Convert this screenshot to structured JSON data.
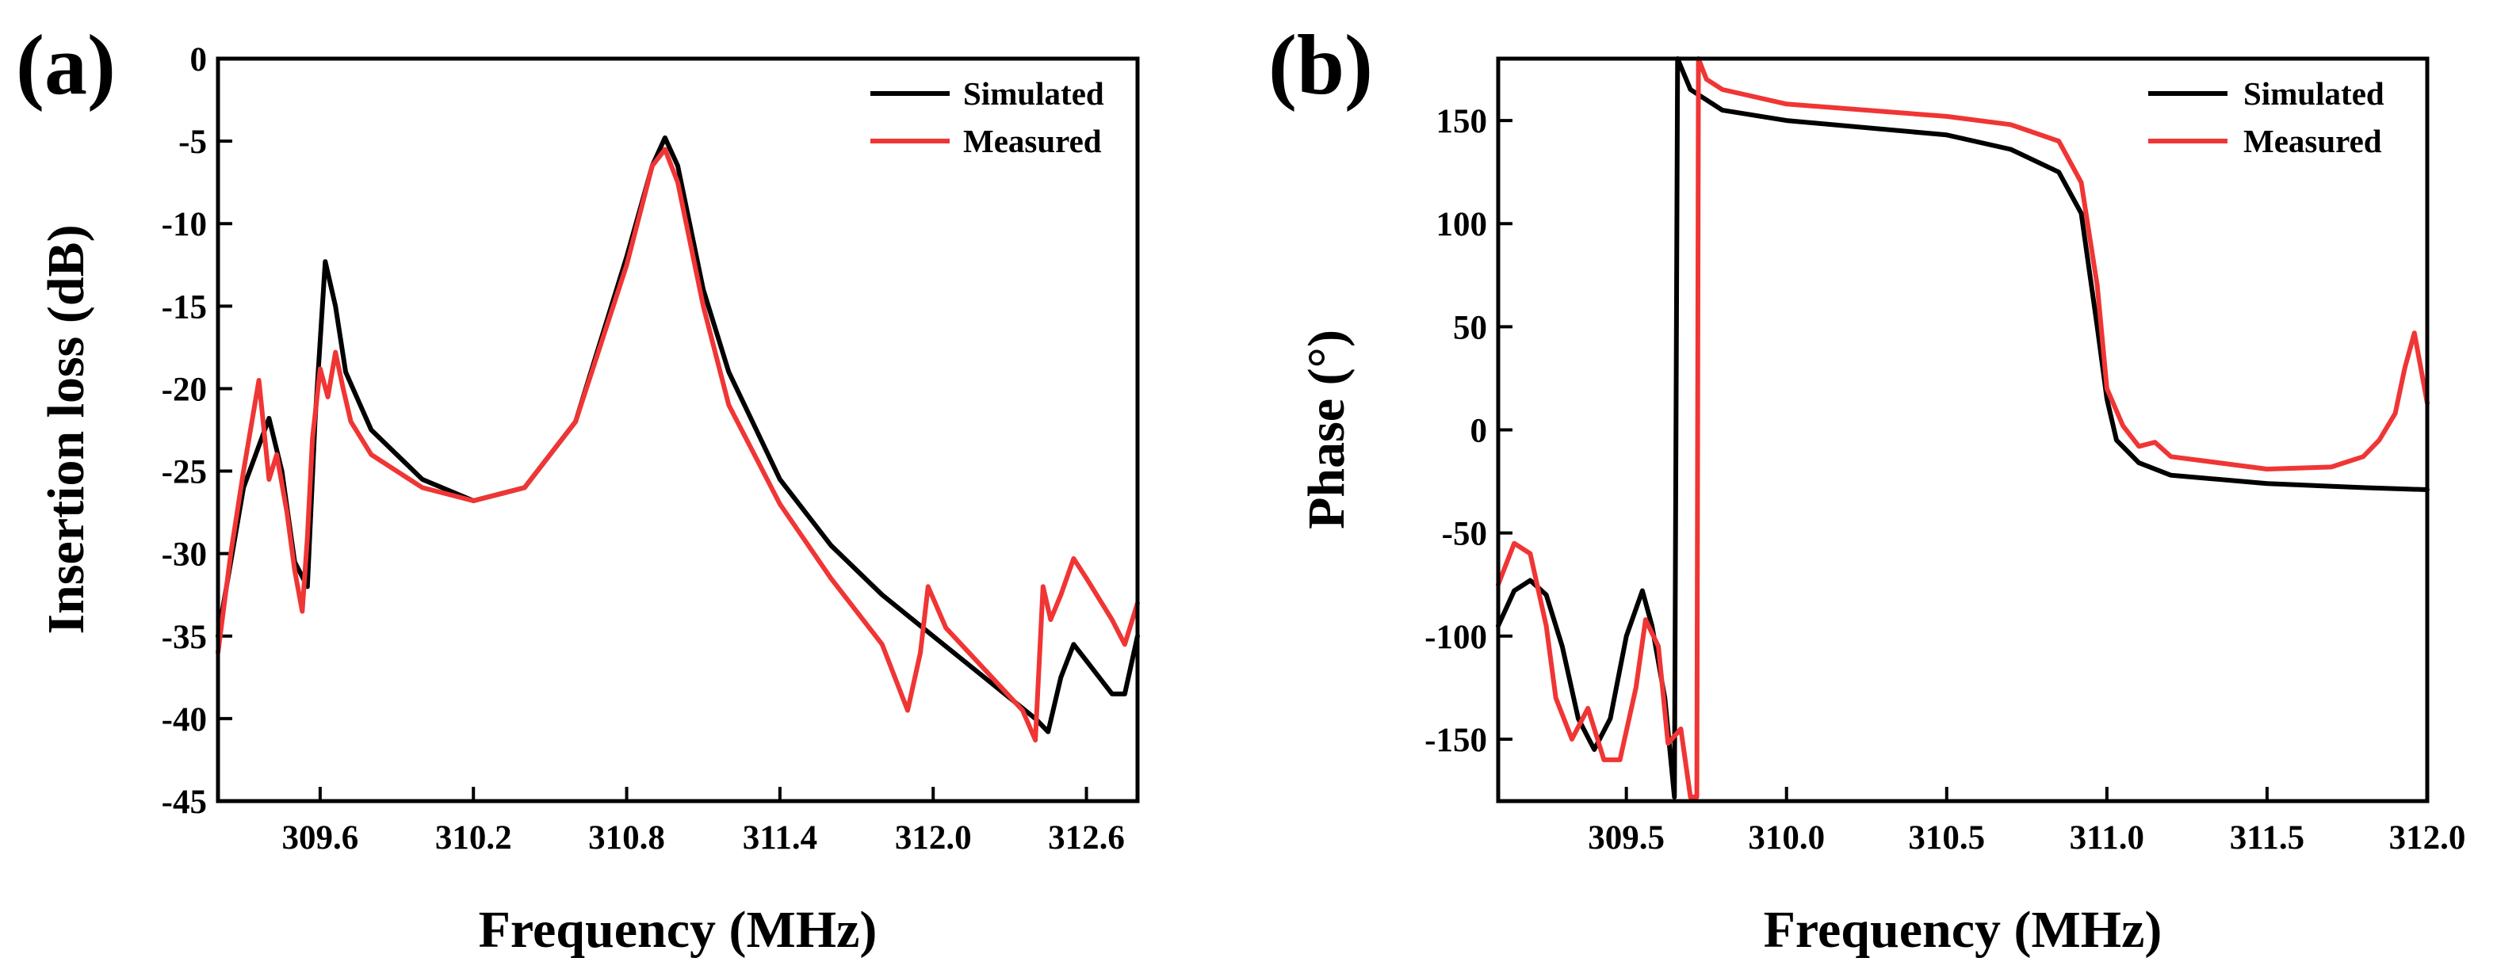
{
  "chart_data": [
    {
      "type": "line",
      "panel_label": "(a)",
      "xlabel": "Frequency (MHz)",
      "ylabel": "Insertion loss (dB)",
      "xlim": [
        309.2,
        312.8
      ],
      "ylim": [
        -45,
        0
      ],
      "xticks": [
        309.6,
        310.2,
        310.8,
        311.4,
        312.0,
        312.6
      ],
      "xtick_labels": [
        "309.6",
        "310.2",
        "310.8",
        "311.4",
        "312.0",
        "312.6"
      ],
      "yticks": [
        0,
        -5,
        -10,
        -15,
        -20,
        -25,
        -30,
        -35,
        -40,
        -45
      ],
      "ytick_labels": [
        "0",
        "-5",
        "-10",
        "-15",
        "-20",
        "-25",
        "-30",
        "-35",
        "-40",
        "-45"
      ],
      "legend_position": "top-right",
      "series": [
        {
          "name": "Simulated",
          "color": "#000000",
          "x": [
            309.2,
            309.3,
            309.4,
            309.45,
            309.5,
            309.55,
            309.58,
            309.62,
            309.66,
            309.7,
            309.8,
            310.0,
            310.2,
            310.4,
            310.6,
            310.8,
            310.9,
            310.95,
            311.0,
            311.1,
            311.2,
            311.4,
            311.6,
            311.8,
            312.0,
            312.2,
            312.4,
            312.45,
            312.5,
            312.55,
            312.6,
            312.7,
            312.75,
            312.8
          ],
          "y": [
            -35,
            -26,
            -21.8,
            -25,
            -30.5,
            -32,
            -22,
            -12.3,
            -15,
            -19,
            -22.5,
            -25.5,
            -26.8,
            -26,
            -22,
            -12,
            -6.5,
            -4.8,
            -6.5,
            -14,
            -19,
            -25.5,
            -29.5,
            -32.5,
            -35,
            -37.5,
            -40,
            -40.8,
            -37.5,
            -35.5,
            -36.5,
            -38.5,
            -38.5,
            -35
          ]
        },
        {
          "name": "Measured",
          "color": "#f03535",
          "x": [
            309.2,
            309.25,
            309.3,
            309.36,
            309.4,
            309.43,
            309.47,
            309.5,
            309.53,
            309.55,
            309.57,
            309.6,
            309.63,
            309.66,
            309.69,
            309.72,
            309.8,
            310.0,
            310.2,
            310.4,
            310.6,
            310.8,
            310.9,
            310.95,
            311.0,
            311.1,
            311.2,
            311.3,
            311.4,
            311.6,
            311.8,
            311.9,
            311.95,
            311.98,
            312.05,
            312.2,
            312.35,
            312.4,
            312.43,
            312.46,
            312.5,
            312.55,
            312.6,
            312.7,
            312.75,
            312.8
          ],
          "y": [
            -36,
            -30,
            -25,
            -19.5,
            -25.5,
            -24,
            -27.5,
            -31,
            -33.5,
            -29,
            -23,
            -18.8,
            -20.5,
            -17.8,
            -20,
            -22,
            -24,
            -26,
            -26.8,
            -26,
            -22,
            -12.5,
            -6.5,
            -5.5,
            -7.5,
            -15,
            -21,
            -24,
            -27,
            -31.5,
            -35.5,
            -39.5,
            -36,
            -32,
            -34.5,
            -37,
            -39.5,
            -41.3,
            -32,
            -34,
            -32.5,
            -30.3,
            -31.5,
            -34,
            -35.5,
            -33
          ]
        }
      ]
    },
    {
      "type": "line",
      "panel_label": "(b)",
      "xlabel": "Frequency (MHz)",
      "ylabel": "Phase (°)",
      "xlim": [
        309.1,
        312.0
      ],
      "ylim": [
        -180,
        180
      ],
      "xticks": [
        309.5,
        310.0,
        310.5,
        311.0,
        311.5,
        312.0
      ],
      "xtick_labels": [
        "309.5",
        "310.0",
        "310.5",
        "311.0",
        "311.5",
        "312.0"
      ],
      "yticks": [
        150,
        100,
        50,
        0,
        -50,
        -100,
        -150
      ],
      "ytick_labels": [
        "150",
        "100",
        "50",
        "0",
        "-50",
        "-100",
        "-150"
      ],
      "legend_position": "top-right",
      "series": [
        {
          "name": "Simulated",
          "color": "#000000",
          "x": [
            309.1,
            309.15,
            309.2,
            309.25,
            309.3,
            309.35,
            309.4,
            309.45,
            309.5,
            309.55,
            309.58,
            309.62,
            309.65,
            309.66,
            309.7,
            309.8,
            310.0,
            310.5,
            310.7,
            310.85,
            310.92,
            310.97,
            311.0,
            311.03,
            311.1,
            311.2,
            311.5,
            311.8,
            312.0
          ],
          "y": [
            -95,
            -78,
            -73,
            -80,
            -105,
            -140,
            -155,
            -140,
            -100,
            -78,
            -95,
            -130,
            -178,
            180,
            165,
            155,
            150,
            143,
            136,
            125,
            105,
            50,
            15,
            -5,
            -16,
            -22,
            -26,
            -28,
            -29
          ]
        },
        {
          "name": "Measured",
          "color": "#f03535",
          "x": [
            309.1,
            309.15,
            309.2,
            309.25,
            309.28,
            309.33,
            309.38,
            309.43,
            309.48,
            309.53,
            309.56,
            309.6,
            309.63,
            309.67,
            309.7,
            309.72,
            309.725,
            309.75,
            309.8,
            310.0,
            310.5,
            310.7,
            310.85,
            310.92,
            310.97,
            311.0,
            311.05,
            311.1,
            311.15,
            311.2,
            311.3,
            311.5,
            311.7,
            311.8,
            311.85,
            311.9,
            311.93,
            311.96,
            312.0
          ],
          "y": [
            -75,
            -55,
            -60,
            -95,
            -130,
            -150,
            -135,
            -160,
            -160,
            -125,
            -92,
            -105,
            -152,
            -145,
            -178,
            -178,
            180,
            170,
            165,
            158,
            152,
            148,
            140,
            120,
            70,
            20,
            2,
            -8,
            -6,
            -13,
            -15,
            -19,
            -18,
            -13,
            -5,
            8,
            30,
            47,
            13
          ]
        }
      ]
    }
  ]
}
